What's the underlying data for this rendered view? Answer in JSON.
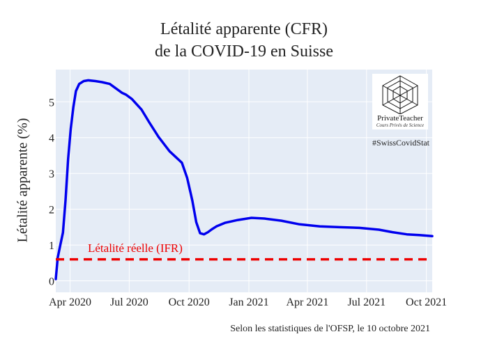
{
  "title_line1": "Létalité apparente (CFR)",
  "title_line2": "de la COVID-19 en Suisse",
  "source": "Selon les statistiques de l'OFSP, le 10 octobre 2021",
  "logo": {
    "name": "PrivateTeacher",
    "tagline": "Cours Privés de Science",
    "hashtag": "#SwissCovidStat"
  },
  "colors": {
    "plot_bg": "#e5ecf6",
    "grid": "#ffffff",
    "cfr_line": "#0000ee",
    "ifr_line": "#ee0000"
  },
  "chart_data": {
    "type": "line",
    "xlabel": "",
    "ylabel": "Létalité apparente (%)",
    "x_ticks": [
      "Apr 2020",
      "Jul 2020",
      "Oct 2020",
      "Jan 2021",
      "Apr 2021",
      "Jul 2021",
      "Oct 2021"
    ],
    "y_ticks": [
      "0",
      "1",
      "2",
      "3",
      "4",
      "5"
    ],
    "xlim": [
      "2020-03-10",
      "2021-10-10"
    ],
    "ylim": [
      -0.32,
      5.9
    ],
    "grid": true,
    "series": [
      {
        "values_x": [
          "2020-03-10",
          "2020-03-13",
          "2020-03-17",
          "2020-03-21",
          "2020-03-25",
          "2020-03-29",
          "2020-04-02",
          "2020-04-06",
          "2020-04-10",
          "2020-04-15",
          "2020-04-22",
          "2020-04-29",
          "2020-05-10",
          "2020-05-20",
          "2020-06-01",
          "2020-06-20",
          "2020-06-26",
          "2020-07-05",
          "2020-07-20",
          "2020-08-01",
          "2020-08-15",
          "2020-09-01",
          "2020-09-20",
          "2020-09-28",
          "2020-10-06",
          "2020-10-12",
          "2020-10-18",
          "2020-10-24",
          "2020-10-30",
          "2020-11-05",
          "2020-11-12",
          "2020-11-25",
          "2020-12-15",
          "2021-01-05",
          "2021-01-25",
          "2021-02-20",
          "2021-03-20",
          "2021-04-20",
          "2021-05-20",
          "2021-06-20",
          "2021-07-20",
          "2021-08-10",
          "2021-09-01",
          "2021-09-20",
          "2021-10-10"
        ],
        "values_y": [
          0.05,
          0.65,
          1.0,
          1.35,
          2.25,
          3.4,
          4.25,
          4.85,
          5.3,
          5.5,
          5.58,
          5.6,
          5.58,
          5.55,
          5.5,
          5.25,
          5.2,
          5.08,
          4.78,
          4.42,
          4.02,
          3.62,
          3.3,
          2.88,
          2.24,
          1.64,
          1.33,
          1.3,
          1.36,
          1.44,
          1.52,
          1.62,
          1.7,
          1.76,
          1.74,
          1.68,
          1.58,
          1.52,
          1.5,
          1.48,
          1.43,
          1.36,
          1.3,
          1.28,
          1.25
        ]
      },
      {
        "name": "Létalité réelle (IFR)",
        "values_x": [
          "2020-03-10",
          "2021-10-10"
        ],
        "values_y": [
          0.6,
          0.6
        ]
      }
    ]
  }
}
